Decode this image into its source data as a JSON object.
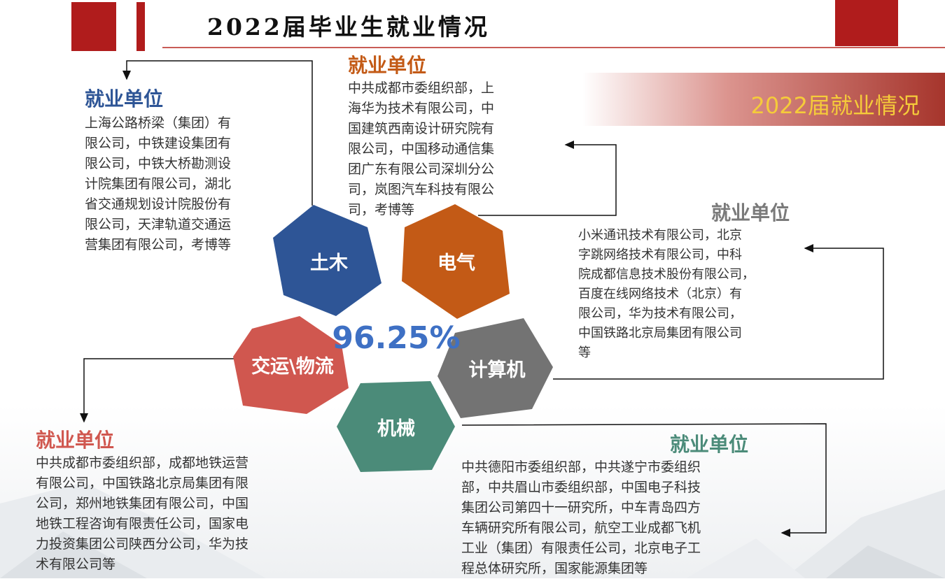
{
  "title": "2022届毕业生就业情况",
  "banner": "2022届就业情况",
  "employment_rate": "96.25%",
  "colors": {
    "accent_red": "#b01c1c",
    "civil": "#2e5596",
    "electrical": "#c35a16",
    "computer": "#737373",
    "transport": "#d0574f",
    "mechanical": "#4b8b79"
  },
  "majors": {
    "civil": "土木",
    "electrical": "电气",
    "transport": "交运\\物流",
    "computer": "计算机",
    "mechanical": "机械"
  },
  "boxes": {
    "civil": {
      "heading": "就业单位",
      "lines": [
        "上海公路桥梁（集团）有",
        "限公司，中铁建设集团有",
        "限公司，中铁大桥勘测设",
        "计院集团有限公司，湖北",
        "省交通规划设计院股份有",
        "限公司，天津轨道交通运",
        "营集团有限公司，考博等"
      ]
    },
    "electrical": {
      "heading": "就业单位",
      "lines": [
        "中共成都市委组织部，上",
        "海华为技术有限公司，中",
        "国建筑西南设计研究院有",
        "限公司，中国移动通信集",
        "团广东有限公司深圳分公",
        "司，岚图汽车科技有限公",
        "司，考博等"
      ]
    },
    "computer": {
      "heading": "就业单位",
      "lines": [
        "小米通讯技术有限公司，北京",
        "字跳网络技术有限公司，中科",
        "院成都信息技术股份有限公司，",
        "百度在线网络技术（北京）有",
        "限公司，华为技术有限公司，",
        "中国铁路北京局集团有限公司",
        "等"
      ]
    },
    "transport": {
      "heading": "就业单位",
      "lines": [
        "中共成都市委组织部，成都地铁运营",
        "有限公司，中国铁路北京局集团有限",
        "公司，郑州地铁集团有限公司，中国",
        "地铁工程咨询有限责任公司，国家电",
        "力投资集团公司陕西分公司，华为技",
        "术有限公司等"
      ]
    },
    "mechanical": {
      "heading": "就业单位",
      "lines": [
        "中共德阳市委组织部，中共遂宁市委组织",
        "部，中共眉山市委组织部，中国电子科技",
        "集团公司第四十一研究所，中车青岛四方",
        "车辆研究所有限公司，航空工业成都飞机",
        "工业（集团）有限责任公司，北京电子工",
        "程总体研究所，国家能源集团等"
      ]
    }
  }
}
